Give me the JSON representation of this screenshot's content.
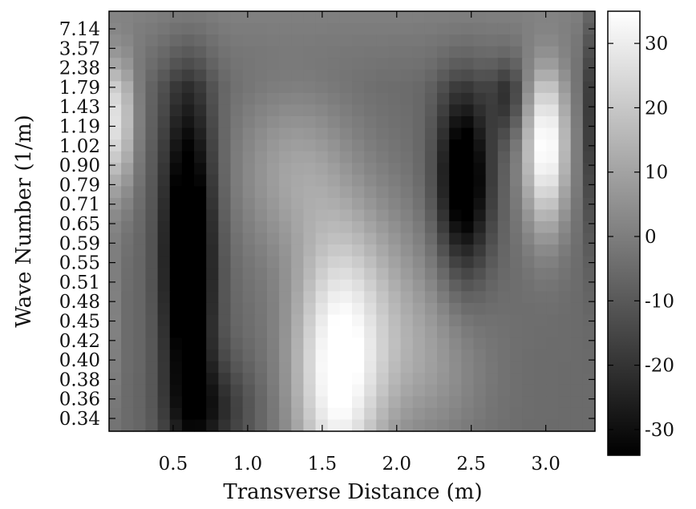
{
  "chart_data": {
    "type": "heatmap",
    "xlabel": "Transverse Distance (m)",
    "ylabel": "Wave Number (1/m)",
    "x_ticks": [
      "0.5",
      "1.0",
      "1.5",
      "2.0",
      "2.5",
      "3.0"
    ],
    "x_tick_values": [
      0.5,
      1.0,
      1.5,
      2.0,
      2.5,
      3.0
    ],
    "xlim": [
      0.07,
      3.33
    ],
    "y_ticks": [
      "7.14",
      "3.57",
      "2.38",
      "1.79",
      "1.43",
      "1.19",
      "1.02",
      "0.90",
      "0.79",
      "0.71",
      "0.65",
      "0.59",
      "0.55",
      "0.51",
      "0.48",
      "0.45",
      "0.42",
      "0.40",
      "0.38",
      "0.36",
      "0.34"
    ],
    "colorbar_ticks": [
      "30",
      "20",
      "10",
      "0",
      "-10",
      "-20",
      "-30"
    ],
    "colorbar_tick_values": [
      30,
      20,
      10,
      0,
      -10,
      -20,
      -30
    ],
    "colorbar_range": [
      -34,
      35
    ],
    "colormap": "grayscale (black = low, white = high)",
    "grid_columns": 40,
    "grid_rows": 36,
    "features": [
      {
        "x": 0.6,
        "wave_number_range": "0.34-1.02",
        "value": -33,
        "note": "dark band left"
      },
      {
        "x": 2.45,
        "wave_number_range": "0.55-1.02",
        "value": -30,
        "note": "dark band right"
      },
      {
        "x": 1.6,
        "wave_number_range": "0.34-0.51",
        "value": 32,
        "note": "bright region bottom center"
      },
      {
        "x": 3.0,
        "wave_number_range": "0.79-1.43",
        "value": 33,
        "note": "bright region right"
      },
      {
        "x": 0.12,
        "wave_number_range": "0.90-1.79",
        "value": 25,
        "note": "bright region left edge"
      },
      {
        "x": 1.7,
        "wave_number_range": "2.38-7.14",
        "value": 0,
        "note": "mid-gray top"
      }
    ]
  }
}
